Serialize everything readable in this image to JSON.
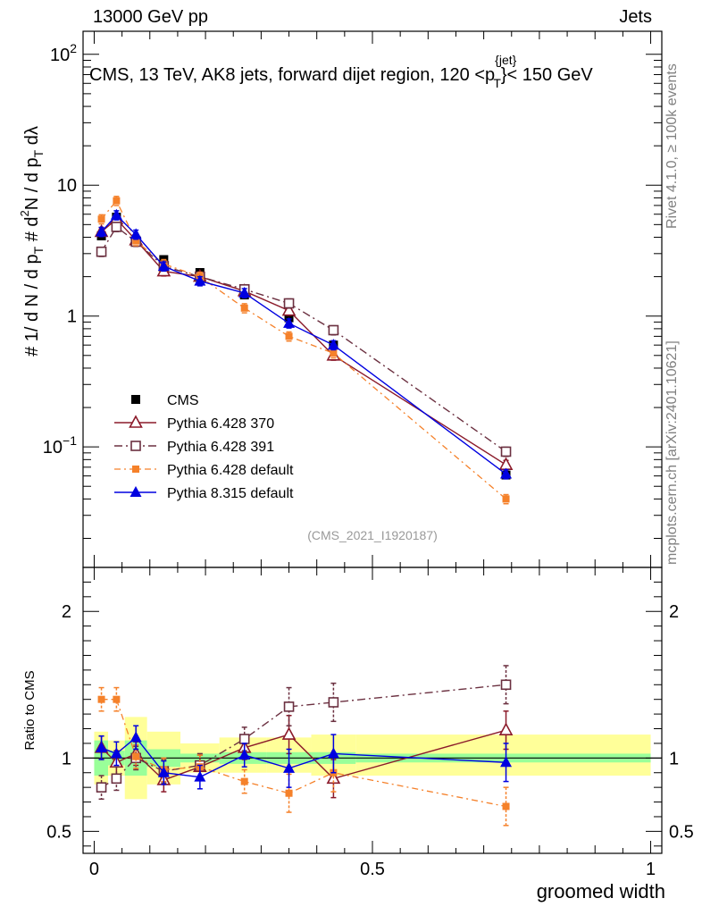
{
  "header": {
    "energy_label": "13000 GeV pp",
    "category_label": "Jets"
  },
  "side_labels": {
    "rivet": "Rivet 4.1.0, ≥ 100k events",
    "mcplots": "mcplots.cern.ch [arXiv:2401.10621]"
  },
  "colors": {
    "CMS": "#000000",
    "Pythia 6.428 370": "#8b1a2a",
    "Pythia 6.428 391": "#6b3040",
    "Pythia 6.428 default": "#f5812a",
    "Pythia 8.315 default": "#0000e0",
    "band_inner": "#99ff99",
    "band_outer": "#ffff99"
  },
  "chart_data": [
    {
      "type": "line",
      "title": "CMS, 13 TeV, AK8 jets, forward dijet region, 120 <p_T^{jet}< 150 GeV",
      "xlabel": "",
      "ylabel": "1/dN/dp_T d²N/dp_T dλ",
      "yscale": "log",
      "xlim": [
        -0.02,
        1.02
      ],
      "ylim": [
        0.012,
        150
      ],
      "y_ticks": [
        "10⁻¹",
        "1",
        "10",
        "10²"
      ],
      "annotation": "(CMS_2021_I1920187)",
      "x": [
        0.013,
        0.04,
        0.075,
        0.125,
        0.19,
        0.27,
        0.35,
        0.43,
        0.74
      ],
      "series": [
        {
          "name": "CMS",
          "marker": "square",
          "values": [
            4.1,
            5.7,
            3.7,
            2.7,
            2.15,
            1.45,
            0.97,
            0.6,
            0.061
          ]
        },
        {
          "name": "Pythia 6.428 370",
          "marker": "open-triangle",
          "values": [
            4.4,
            5.5,
            3.8,
            2.2,
            2.0,
            1.55,
            1.1,
            0.5,
            0.073
          ]
        },
        {
          "name": "Pythia 6.428 391",
          "marker": "open-square",
          "values": [
            3.1,
            4.8,
            3.7,
            2.4,
            2.0,
            1.6,
            1.25,
            0.78,
            0.092
          ]
        },
        {
          "name": "Pythia 6.428 default",
          "marker": "small-square",
          "values": [
            5.5,
            7.6,
            3.75,
            2.5,
            2.0,
            1.15,
            0.7,
            0.52,
            0.04
          ]
        },
        {
          "name": "Pythia 8.315 default",
          "marker": "triangle",
          "values": [
            4.4,
            5.9,
            4.2,
            2.4,
            1.85,
            1.5,
            0.88,
            0.6,
            0.062
          ]
        }
      ]
    },
    {
      "type": "line",
      "title": "",
      "xlabel": "groomed width",
      "ylabel": "Ratio to CMS",
      "xlim": [
        -0.02,
        1.02
      ],
      "ylim": [
        0.35,
        2.3
      ],
      "x_ticks": [
        "0",
        "0.5",
        "1"
      ],
      "y_ticks": [
        "0.5",
        "1",
        "2"
      ],
      "bands": {
        "edges": [
          0.0,
          0.025,
          0.055,
          0.095,
          0.155,
          0.225,
          0.31,
          0.39,
          0.47,
          1.0
        ],
        "inner_low": [
          0.88,
          0.95,
          0.88,
          0.94,
          0.97,
          0.96,
          0.96,
          0.96,
          0.97
        ],
        "inner_high": [
          1.12,
          1.05,
          1.12,
          1.06,
          1.03,
          1.04,
          1.04,
          1.04,
          1.03
        ],
        "outer_low": [
          0.82,
          0.88,
          0.72,
          0.82,
          0.9,
          0.9,
          0.9,
          0.88,
          0.88
        ],
        "outer_high": [
          1.18,
          1.12,
          1.28,
          1.18,
          1.1,
          1.14,
          1.14,
          1.16,
          1.16
        ]
      },
      "x": [
        0.013,
        0.04,
        0.075,
        0.125,
        0.19,
        0.27,
        0.35,
        0.43,
        0.74
      ],
      "series": [
        {
          "name": "Pythia 6.428 370",
          "marker": "open-triangle",
          "values": [
            1.07,
            0.97,
            1.03,
            0.85,
            0.94,
            1.07,
            1.16,
            0.86,
            1.19
          ]
        },
        {
          "name": "Pythia 6.428 391",
          "marker": "open-square",
          "values": [
            0.8,
            0.86,
            1.0,
            0.91,
            0.95,
            1.13,
            1.35,
            1.38,
            1.5
          ]
        },
        {
          "name": "Pythia 6.428 default",
          "marker": "small-square",
          "values": [
            1.4,
            1.4,
            1.01,
            0.92,
            0.94,
            0.84,
            0.76,
            0.9,
            0.67
          ]
        },
        {
          "name": "Pythia 8.315 default",
          "marker": "triangle",
          "values": [
            1.07,
            1.03,
            1.14,
            0.9,
            0.87,
            1.02,
            0.93,
            1.03,
            0.97
          ]
        }
      ]
    }
  ]
}
